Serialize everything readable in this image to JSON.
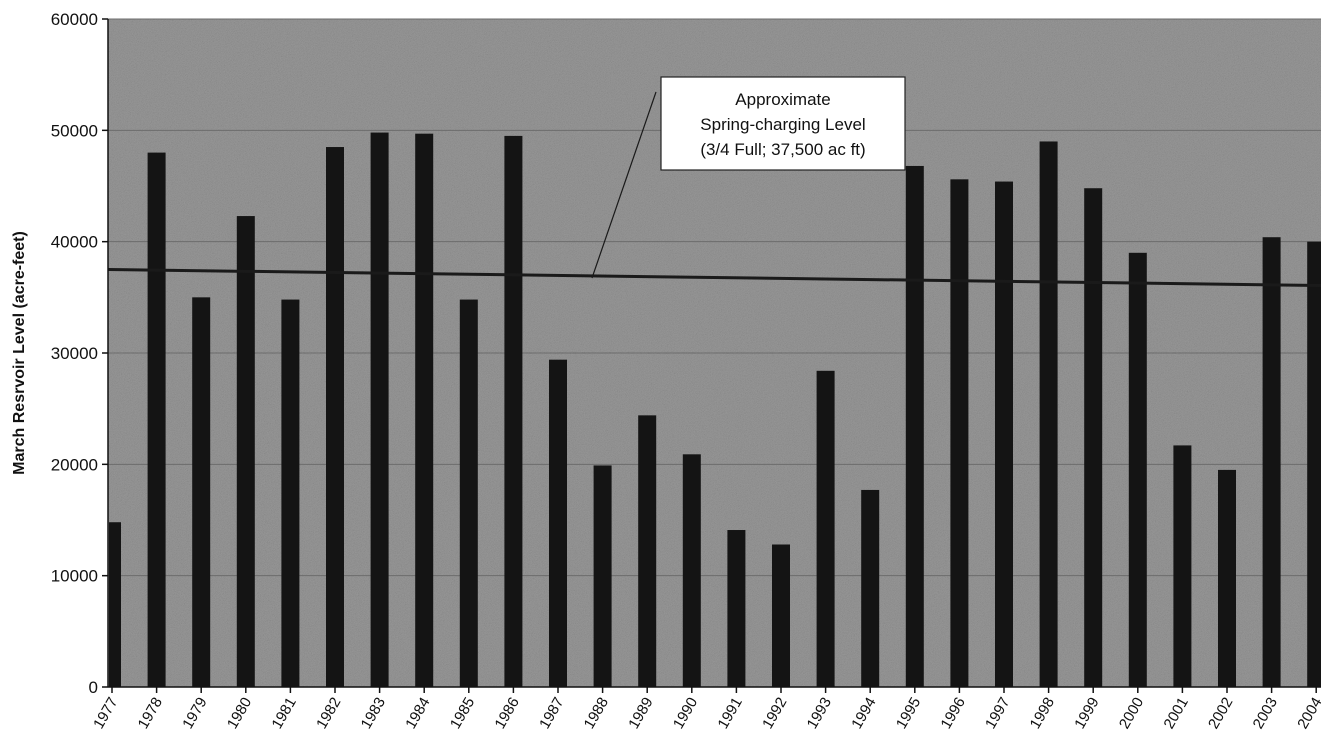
{
  "chart_data": {
    "type": "bar",
    "title": "",
    "xlabel": "",
    "ylabel": "March Resrvoir Level (acre-feet)",
    "ylim": [
      0,
      60000
    ],
    "yticks": [
      0,
      10000,
      20000,
      30000,
      40000,
      50000,
      60000
    ],
    "grid": true,
    "categories": [
      "1977",
      "1978",
      "1979",
      "1980",
      "1981",
      "1982",
      "1983",
      "1984",
      "1985",
      "1986",
      "1987",
      "1988",
      "1989",
      "1990",
      "1991",
      "1992",
      "1993",
      "1994",
      "1995",
      "1996",
      "1997",
      "1998",
      "1999",
      "2000",
      "2001",
      "2002",
      "2003",
      "2004"
    ],
    "values": [
      14800,
      48000,
      35000,
      42300,
      34800,
      48500,
      49800,
      49700,
      34800,
      49500,
      29400,
      19900,
      24400,
      20900,
      14100,
      12800,
      28400,
      17700,
      46800,
      45600,
      45400,
      49000,
      44800,
      39000,
      21700,
      19500,
      40400,
      40000
    ],
    "reference_line": {
      "value": 37500,
      "annotation_lines": [
        "Approximate",
        "Spring-charging Level",
        "(3/4 Full; 37,500 ac ft)"
      ]
    },
    "colors": {
      "plot_background": "#9a9a9a",
      "bar": "#141414",
      "reference_line": "#1a1a1a",
      "annotation_box": "#ffffff"
    }
  }
}
